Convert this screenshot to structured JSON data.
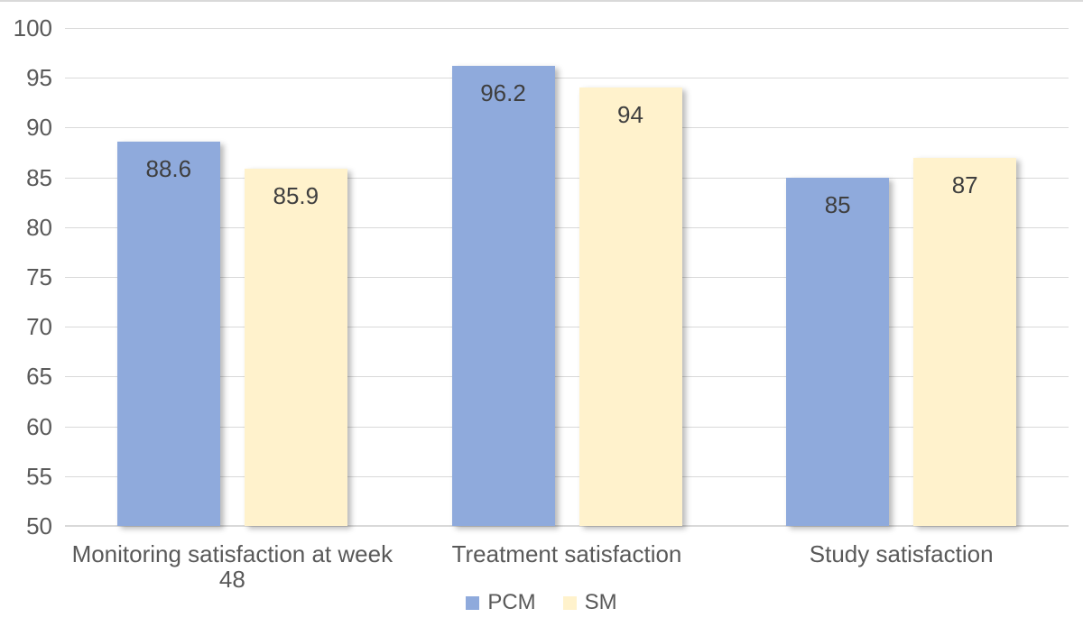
{
  "chart_data": {
    "type": "bar",
    "title": "",
    "categories": [
      "Monitoring satisfaction at week 48",
      "Treatment satisfaction",
      "Study satisfaction"
    ],
    "series": [
      {
        "name": "PCM",
        "color": "#8FAADC",
        "values": [
          88.6,
          96.2,
          85
        ],
        "labels": [
          "88.6",
          "96.2",
          "85"
        ]
      },
      {
        "name": "SM",
        "color": "#FFF2CC",
        "values": [
          85.9,
          94,
          87
        ],
        "labels": [
          "85.9",
          "94",
          "87"
        ]
      }
    ],
    "y_axis": {
      "min": 50,
      "max": 100,
      "step": 5,
      "tick_labels": [
        "50",
        "55",
        "60",
        "65",
        "70",
        "75",
        "80",
        "85",
        "90",
        "95",
        "100"
      ]
    },
    "xlabel": "",
    "ylabel": "",
    "grid": true,
    "legend_position": "bottom",
    "style": {
      "background": "#FFFFFF",
      "grid_color": "#D9D9D9",
      "axis_color": "#D9D9D9",
      "border_color": "#D9D9D9",
      "tick_text_color": "#595959",
      "category_text_color": "#595959",
      "legend_text_color": "#595959",
      "bar_label_color": "#3F3F3F"
    }
  }
}
